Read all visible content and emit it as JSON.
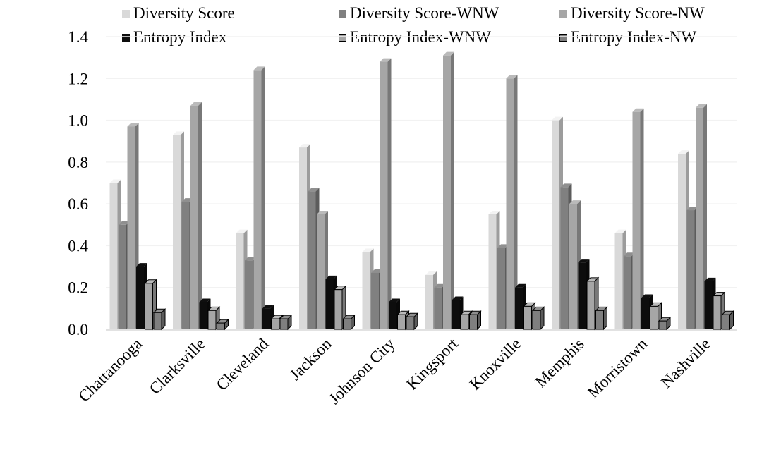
{
  "chart_data": {
    "type": "bar",
    "categories": [
      "Chattanooga",
      "Clarksville",
      "Cleveland",
      "Jackson",
      "Johnson City",
      "Kingsport",
      "Knoxville",
      "Memphis",
      "Morristown",
      "Nashville"
    ],
    "series": [
      {
        "name": "Diversity Score",
        "color": "#d9d9d9",
        "values": [
          0.7,
          0.93,
          0.46,
          0.87,
          0.37,
          0.26,
          0.55,
          1.0,
          0.46,
          0.84
        ]
      },
      {
        "name": "Diversity Score-WNW",
        "color": "#808080",
        "values": [
          0.5,
          0.61,
          0.33,
          0.66,
          0.27,
          0.2,
          0.39,
          0.68,
          0.35,
          0.57
        ]
      },
      {
        "name": "Diversity Score-NW",
        "color": "#a6a6a6",
        "values": [
          0.97,
          1.07,
          1.24,
          0.55,
          1.28,
          1.31,
          1.2,
          0.6,
          1.04,
          1.06
        ]
      },
      {
        "name": "Entropy Index",
        "color": "#0d0d0d",
        "values": [
          0.3,
          0.13,
          0.1,
          0.24,
          0.13,
          0.14,
          0.2,
          0.32,
          0.15,
          0.23
        ]
      },
      {
        "name": "Entropy Index-WNW",
        "color": "#a6a6a6",
        "values": [
          0.22,
          0.09,
          0.05,
          0.19,
          0.07,
          0.07,
          0.11,
          0.23,
          0.11,
          0.16
        ]
      },
      {
        "name": "Entropy Index-NW",
        "color": "#7f7f7f",
        "values": [
          0.08,
          0.03,
          0.05,
          0.05,
          0.06,
          0.07,
          0.09,
          0.09,
          0.04,
          0.07
        ]
      }
    ],
    "yticks": [
      "0.0",
      "0.2",
      "0.4",
      "0.6",
      "0.8",
      "1.0",
      "1.2",
      "1.4"
    ],
    "ylim": [
      0,
      1.4
    ],
    "grid": true,
    "legend_position": "top"
  }
}
